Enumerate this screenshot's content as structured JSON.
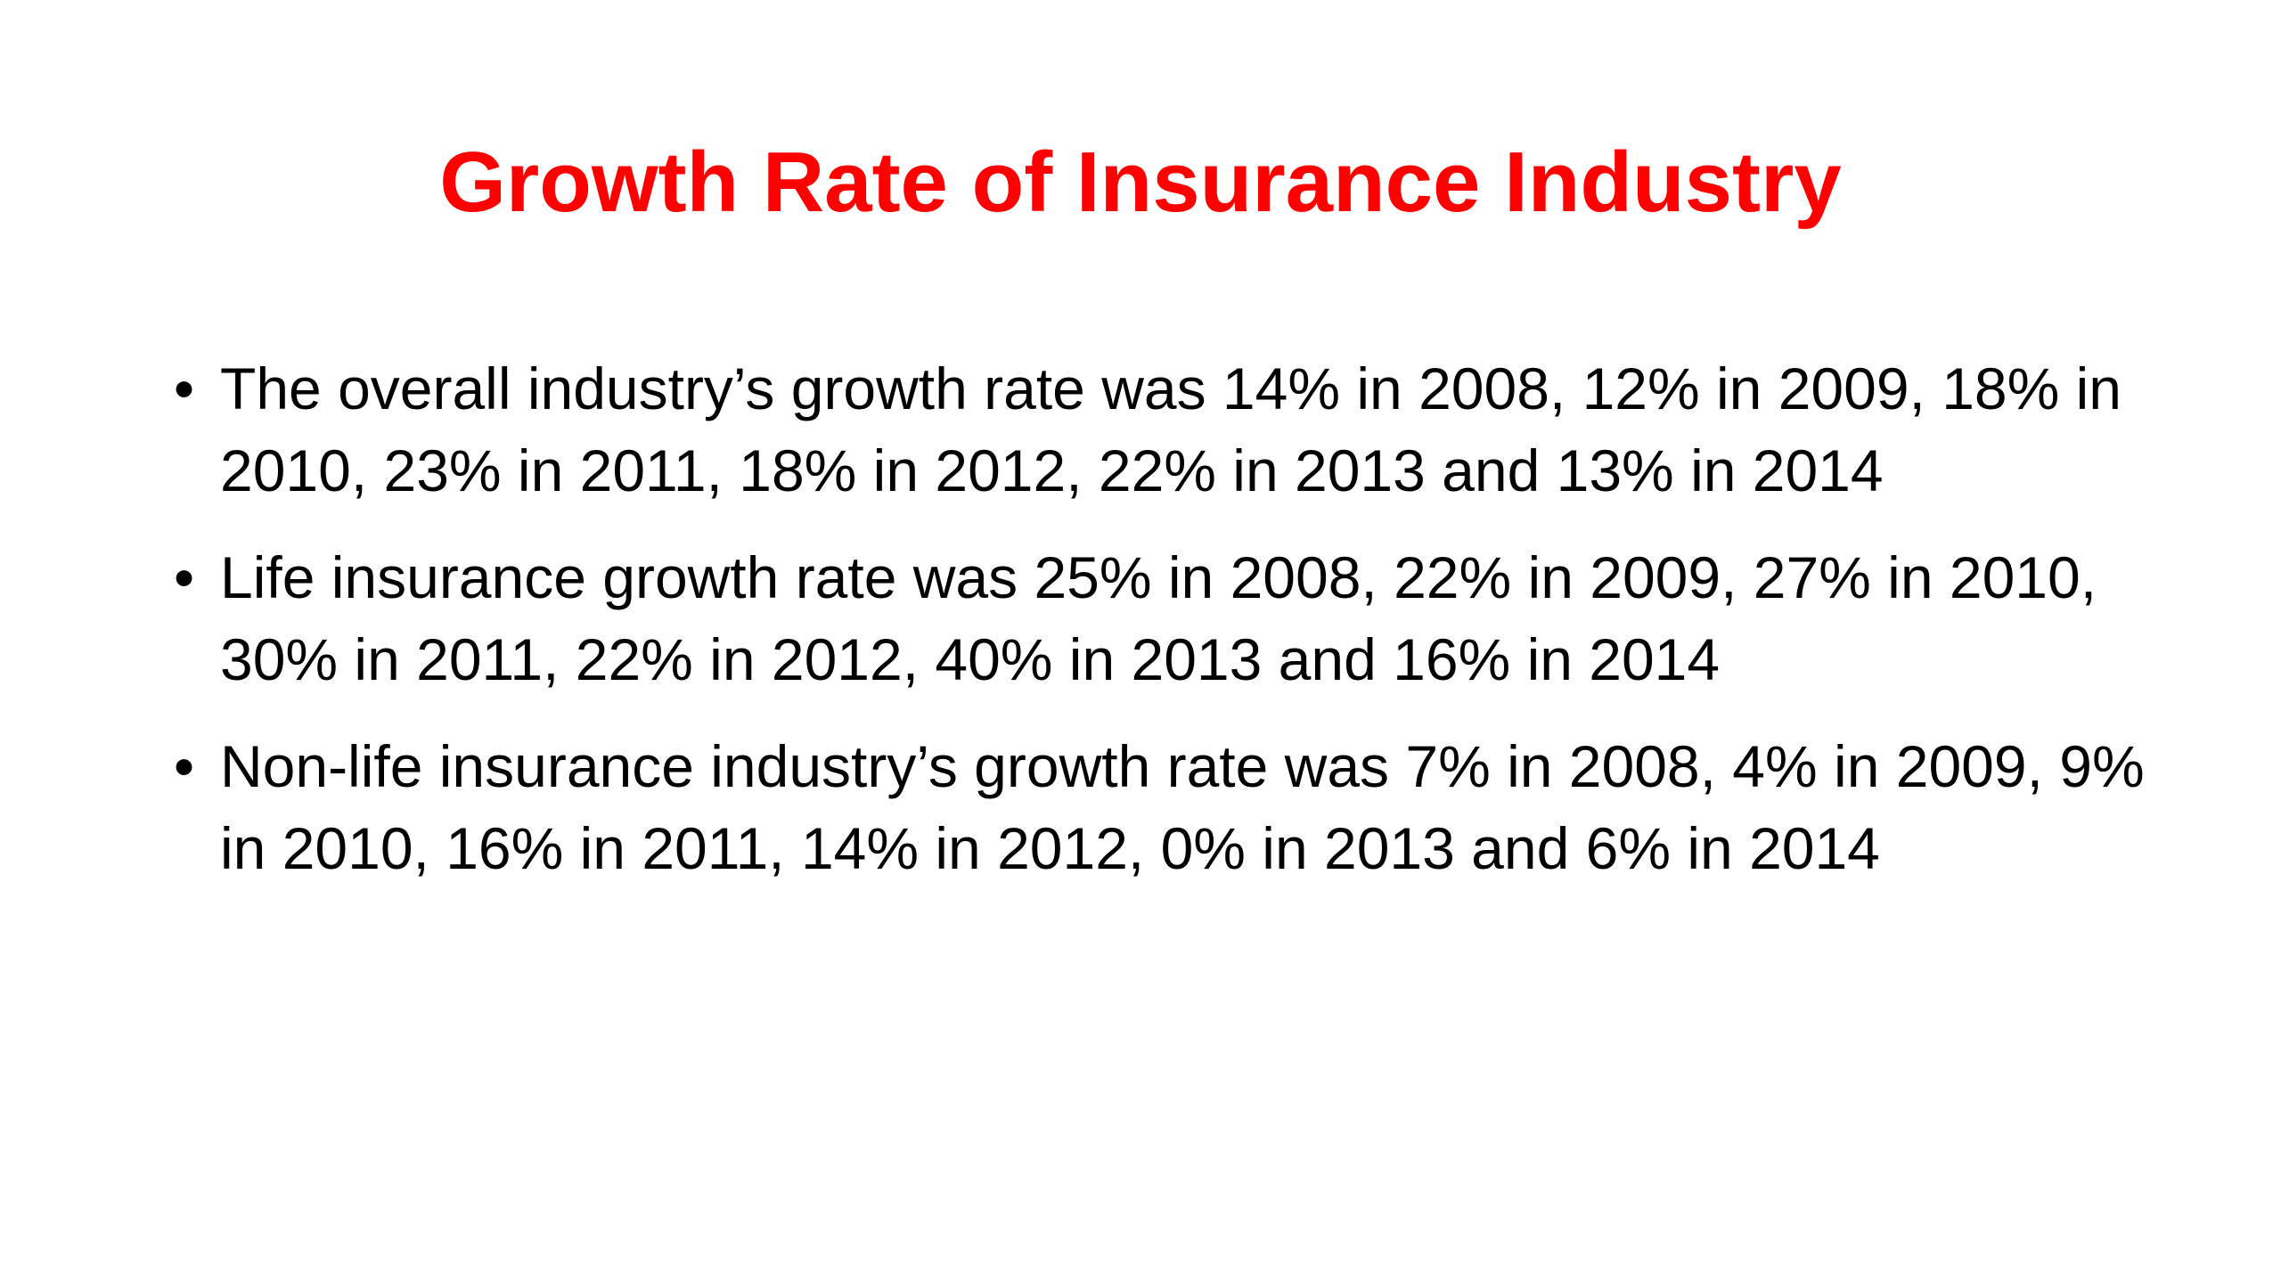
{
  "slide": {
    "title": "Growth Rate of Insurance Industry",
    "title_color": "#ff0000",
    "bullet_glyph": "•",
    "bullets": [
      "The overall industry’s growth rate was 14% in 2008, 12% in 2009, 18% in 2010, 23% in 2011, 18% in 2012, 22% in 2013 and 13% in 2014",
      "Life insurance growth rate was 25% in 2008, 22% in 2009, 27% in 2010, 30% in 2011, 22% in 2012, 40% in 2013 and 16% in 2014",
      "Non-life insurance industry’s growth rate was 7% in 2008, 4% in 2009, 9% in 2010, 16% in 2011, 14% in 2012, 0% in 2013 and 6% in 2014"
    ]
  }
}
